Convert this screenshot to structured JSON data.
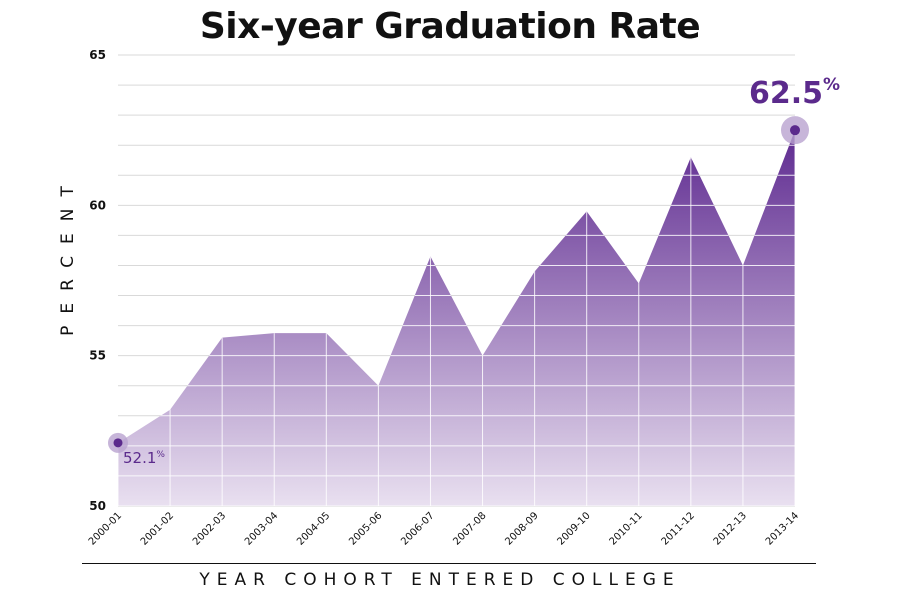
{
  "chart_data": {
    "type": "area",
    "title": "Six-year Graduation Rate",
    "xlabel": "YEAR COHORT ENTERED COLLEGE",
    "ylabel": "PERCENT",
    "ylim": [
      50,
      65
    ],
    "yticks": [
      50,
      55,
      60,
      65
    ],
    "grid": true,
    "categories": [
      "2000-01",
      "2001-02",
      "2002-03",
      "2003-04",
      "2004-05",
      "2005-06",
      "2006-07",
      "2007-08",
      "2008-09",
      "2009-10",
      "2010-11",
      "2011-12",
      "2012-13",
      "2013-14"
    ],
    "values": [
      52.1,
      53.2,
      55.6,
      55.75,
      55.75,
      54.0,
      58.3,
      55.0,
      57.8,
      59.8,
      57.4,
      61.6,
      58.0,
      62.5
    ],
    "start_annotation": {
      "value": "52.1",
      "unit": "%"
    },
    "end_annotation": {
      "value": "62.5",
      "unit": "%"
    },
    "colors": {
      "fill_top": "#5e2a90",
      "fill_bottom": "#e9e0f0",
      "accent": "#5b2a8c",
      "marker": "#5b2a8c",
      "halo": "#b9a3cf"
    }
  }
}
